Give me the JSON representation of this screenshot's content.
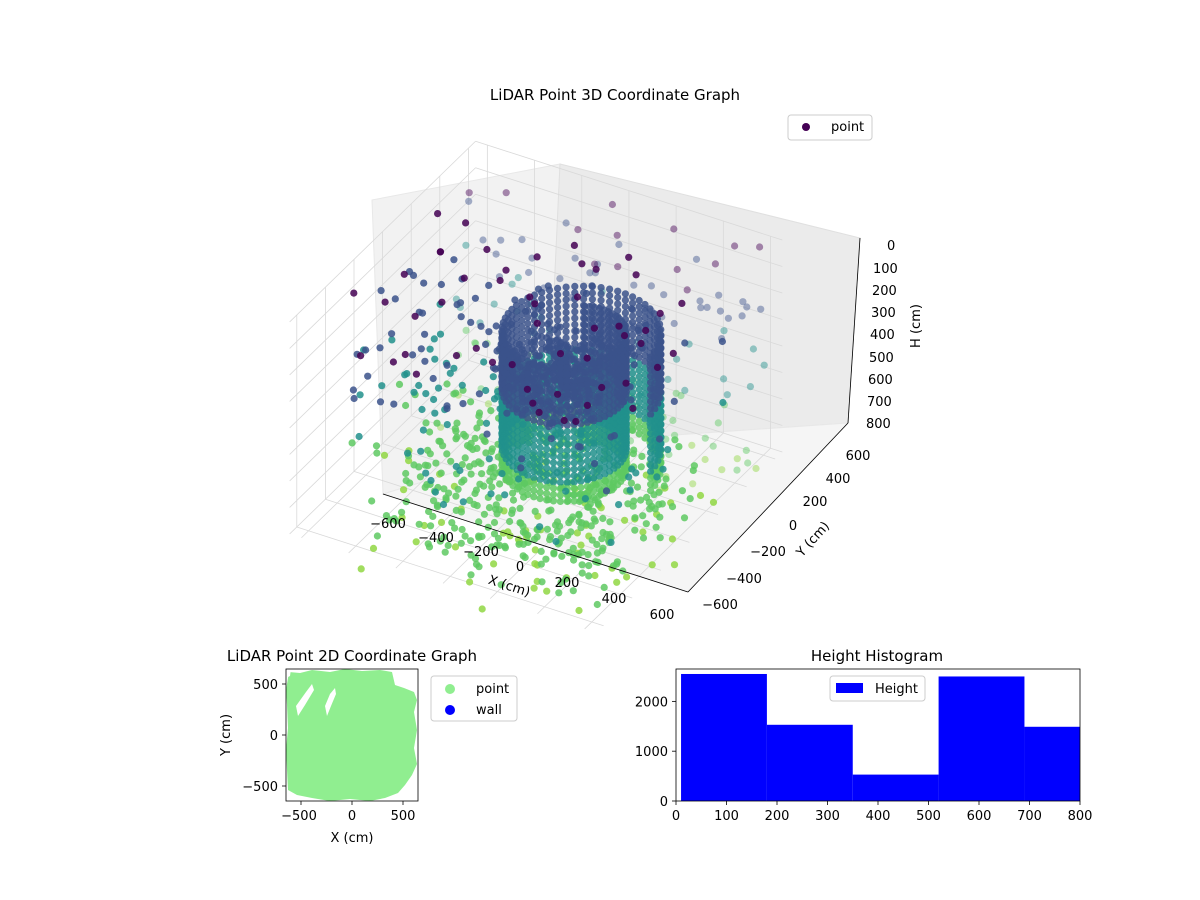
{
  "figure": {
    "background": "#ffffff"
  },
  "chart_data": [
    {
      "type": "scatter",
      "projection": "3d",
      "title": "LiDAR Point 3D Coordinate Graph",
      "xlabel": "X (cm)",
      "ylabel": "Y (cm)",
      "zlabel": "H (cm)",
      "x_ticks": [
        "−600",
        "−400",
        "−200",
        "0",
        "200",
        "400",
        "600"
      ],
      "y_ticks": [
        "−600",
        "−400",
        "−200",
        "0",
        "200",
        "400",
        "600"
      ],
      "z_ticks": [
        "0",
        "100",
        "200",
        "300",
        "400",
        "500",
        "600",
        "700",
        "800"
      ],
      "xlim": [
        -650,
        650
      ],
      "ylim": [
        -650,
        650
      ],
      "zlim": [
        0,
        800
      ],
      "z_inverted": true,
      "colormap": "viridis",
      "colormap_range": [
        "#440154",
        "#3b528b",
        "#21918c",
        "#5ec962",
        "#90d743"
      ],
      "legend": {
        "position": "top-right",
        "entries": [
          {
            "label": "point",
            "color": "#440154"
          }
        ]
      },
      "grid": true
    },
    {
      "type": "scatter",
      "title": "LiDAR Point 2D Coordinate Graph",
      "xlabel": "X (cm)",
      "ylabel": "Y (cm)",
      "x_ticks": [
        "−500",
        "0",
        "500"
      ],
      "y_ticks": [
        "−500",
        "0",
        "500"
      ],
      "xlim": [
        -650,
        650
      ],
      "ylim": [
        -650,
        650
      ],
      "series": [
        {
          "name": "point",
          "color": "#90ee90"
        },
        {
          "name": "wall",
          "color": "#0000ff"
        }
      ],
      "legend": {
        "position": "outside-right",
        "entries": [
          {
            "label": "point",
            "color": "#90ee90"
          },
          {
            "label": "wall",
            "color": "#0000ff"
          }
        ]
      },
      "grid": false
    },
    {
      "type": "bar",
      "subtype": "histogram",
      "title": "Height Histogram",
      "bin_edges": [
        10,
        180,
        350,
        520,
        690,
        800
      ],
      "values": [
        2550,
        1530,
        530,
        2500,
        1490
      ],
      "color": "#0000ff",
      "xlim": [
        0,
        800
      ],
      "ylim": [
        0,
        2650
      ],
      "x_ticks": [
        "0",
        "100",
        "200",
        "300",
        "400",
        "500",
        "600",
        "700",
        "800"
      ],
      "y_ticks": [
        "0",
        "1000",
        "2000"
      ],
      "legend": {
        "position": "top-center",
        "entries": [
          {
            "label": "Height",
            "color": "#0000ff"
          }
        ]
      },
      "grid": false
    }
  ]
}
